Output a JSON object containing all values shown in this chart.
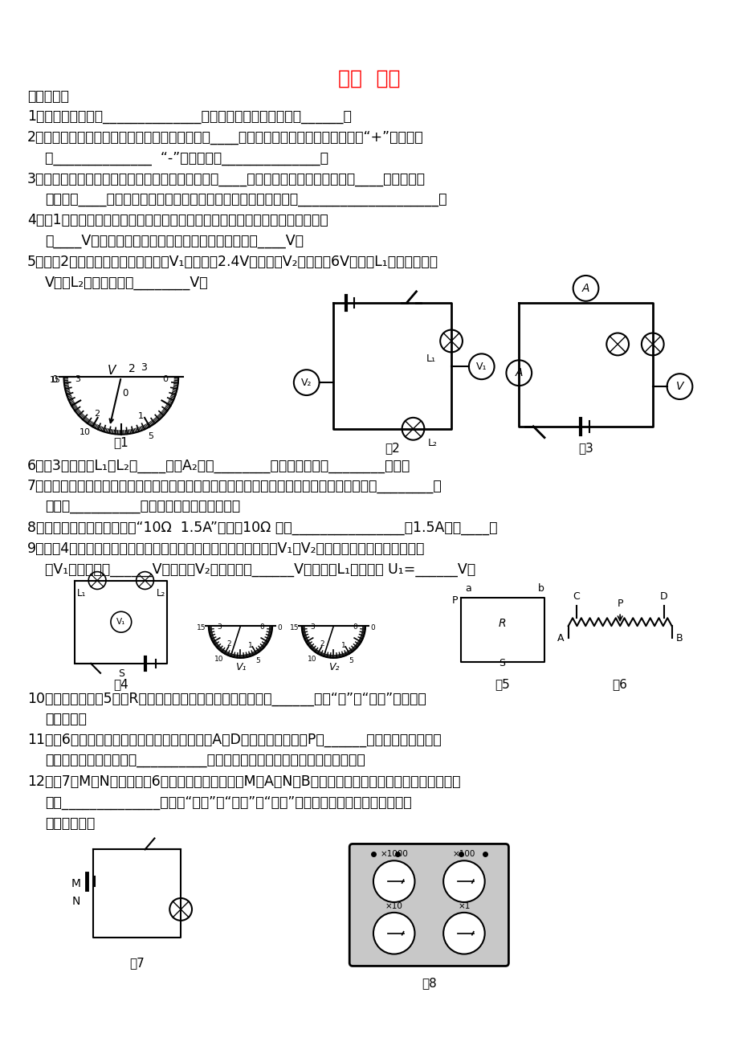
{
  "title": "电压  电阻",
  "title_color": "#FF0000",
  "bg_color": "#FFFFFF",
  "q1": "1、电压是使电路中______________的原因，提供电压的装置叫______。",
  "sec1": "一、填空题",
  "q2_l1": "2、使用电压表测量电路两端电压时，应将电压表____联在被测电路两端，要使电压表的“+”接线柱靠",
  "q2_l2": "近______________  “-”接线柱靠近______________。",
  "q3_l1": "3、将学校实验室常用的电压表接入电路时，应先用____量程试触，若电压表示数小于____时，再改用",
  "q3_l2": "电压表的____量程。测电压时，如果发现表的指针向左偏，原因是____________________。",
  "q4_l1": "4、图1是一双量程的电压表的刻度盘。当使用较小量程时，图中指针位置的示数",
  "q4_l2": "为____V；当使用较大量程时，图中指针位置的示数为____V；",
  "q5_l1": "5、如图2所示，开关闭合后，电压表V₁的示数为2.4V，电压表V₂的示数为6V，则灯L₁两端的电压为",
  "q5_l2": "V，灯L₂两端的电压为________V。",
  "fig1": "图1",
  "fig2": "图2",
  "fig3": "图3",
  "fig4": "图4",
  "fig5": "图5",
  "fig6": "图6",
  "fig7": "图7",
  "fig8": "图8",
  "q6": "6、图3中，灯泡L₁与L₂是____联，A₂表测________电流，电压表测________电压。",
  "q7_l1": "7、研究决定电阻大小的因素时，在做研究导体的电阻与横截面积是否有关的实验时，必须选取________、",
  "q7_l2": "相同，__________、不同的电阻线来做实验。",
  "q8": "8、某滑动变阻器铭牌上标有“10Ω  1.5A”，其中10Ω 表示________________，1.5A表示____。",
  "q9_l1": "9、如图4所示的电路中，电压表所用的量程不明，当电路闭合后，V₁和V₂的示数分别如图所示，则电压",
  "q9_l2": "表V₁用的量程是______V，电压表V₂用的量程是______V，小灯泡L₁上的电压 U₁=______V。",
  "q10_l1": "10、如图所示，图5电阻R和滑动变阻器组成并联电路，此电路______（填“有”或“没有”）发生短",
  "q10_l2": "路的可能。",
  "q11_l1": "11、图6所示是滑动变阻器的结构示意图。若将A、D接入电路中，滑片P向______端移动时，接入电路",
  "q11_l2": "中的电阻就减小，如果将__________接入电路，也能达到改变电阻大小的效果。",
  "q12_l1": "12、图7中M、N间接入如图6所示的滑动变阻器。当M与A、N与B相连接，滑片向右端移动，接入电路的电",
  "q12_l2": "阻将______________（选填“变大”、“变小”或“不变”），这是因为将滑动变阻器当成",
  "q12_l3": "接在电路中。"
}
